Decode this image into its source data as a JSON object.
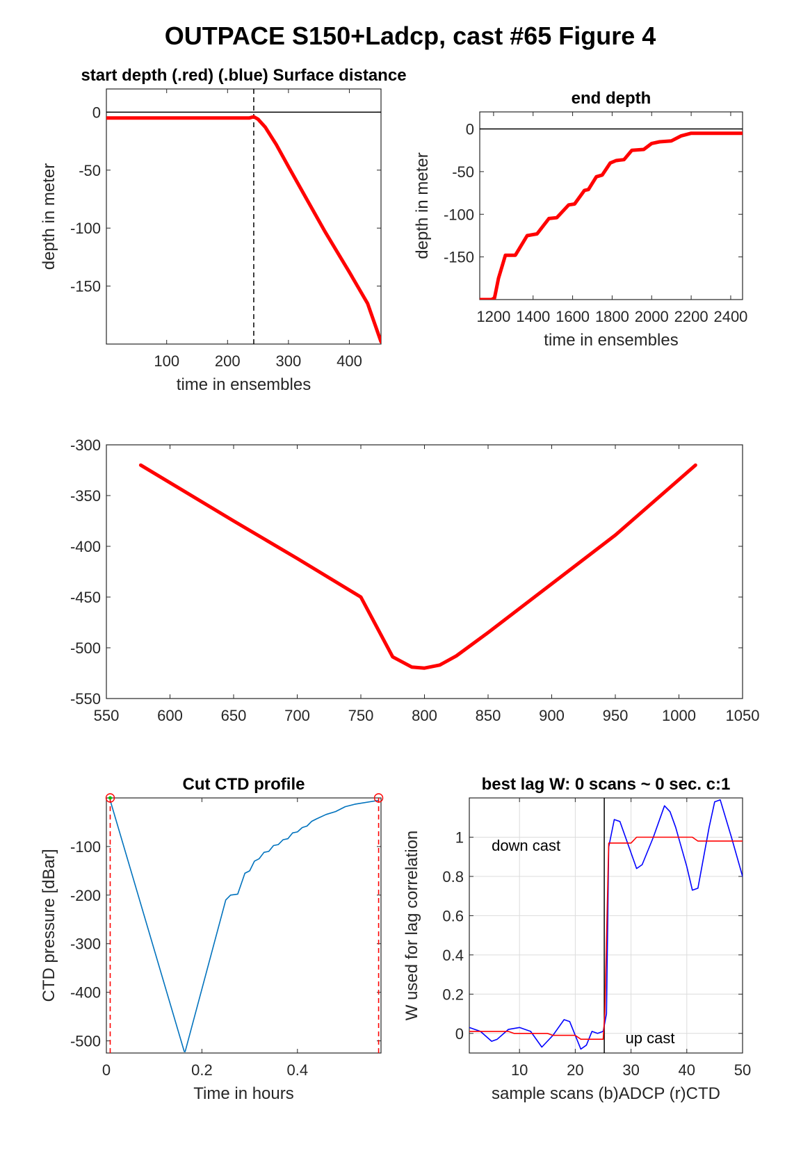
{
  "figure_title": "OUTPACE S150+Ladcp, cast #65   Figure 4",
  "chart_data": [
    {
      "id": "start_depth",
      "type": "line",
      "title": "start depth (.red) (.blue) Surface distance",
      "xlabel": "time in ensembles",
      "ylabel": "depth in meter",
      "xlim": [
        1,
        452
      ],
      "ylim": [
        -200,
        20
      ],
      "xticks": [
        100,
        200,
        300,
        400
      ],
      "yticks": [
        0,
        -50,
        -100,
        -150
      ],
      "zero_line": true,
      "vline": {
        "x": 243,
        "style": "dashed"
      },
      "series": [
        {
          "color": "#ff0000",
          "x": [
            1,
            100,
            200,
            236,
            243,
            250,
            262,
            280,
            300,
            330,
            360,
            400,
            430,
            452
          ],
          "y": [
            -5,
            -5,
            -5,
            -5,
            -4,
            -6,
            -13,
            -28,
            -47,
            -75,
            -103,
            -138,
            -165,
            -198
          ]
        }
      ]
    },
    {
      "id": "end_depth",
      "type": "line",
      "title": "end depth",
      "xlabel": "time in ensembles",
      "ylabel": "depth in meter",
      "xlim": [
        1130,
        2460
      ],
      "ylim": [
        -200,
        20
      ],
      "xticks": [
        1200,
        1400,
        1600,
        1800,
        2000,
        2200,
        2400
      ],
      "yticks": [
        0,
        -50,
        -100,
        -150
      ],
      "zero_line": true,
      "series": [
        {
          "color": "#ff0000",
          "x": [
            1130,
            1190,
            1205,
            1225,
            1260,
            1310,
            1370,
            1420,
            1480,
            1520,
            1580,
            1610,
            1660,
            1680,
            1720,
            1750,
            1790,
            1820,
            1860,
            1900,
            1960,
            2000,
            2040,
            2100,
            2150,
            2200,
            2460
          ],
          "y": [
            -200,
            -200,
            -198,
            -175,
            -148,
            -148,
            -125,
            -123,
            -105,
            -104,
            -89,
            -88,
            -72,
            -71,
            -56,
            -54,
            -40,
            -37,
            -36,
            -25,
            -24,
            -17,
            -15,
            -14,
            -8,
            -5,
            -5
          ]
        }
      ]
    },
    {
      "id": "depth_profile",
      "type": "line",
      "title": "",
      "xlabel": "",
      "ylabel": "",
      "xlim": [
        550,
        1050
      ],
      "ylim": [
        -550,
        -300
      ],
      "xticks": [
        550,
        600,
        650,
        700,
        750,
        800,
        850,
        900,
        950,
        1000,
        1050
      ],
      "yticks": [
        -300,
        -350,
        -400,
        -450,
        -500,
        -550
      ],
      "series": [
        {
          "color": "#ff0000",
          "x": [
            577,
            650,
            700,
            750,
            775,
            790,
            800,
            812,
            825,
            850,
            900,
            950,
            1013
          ],
          "y": [
            -320,
            -375,
            -412,
            -450,
            -509,
            -519,
            -520,
            -517,
            -508,
            -485,
            -437,
            -389,
            -320
          ]
        }
      ]
    },
    {
      "id": "cut_ctd",
      "type": "line",
      "title": "Cut CTD profile",
      "xlabel": "Time in hours",
      "ylabel": "CTD pressure [dBar]",
      "xlim": [
        0,
        0.575
      ],
      "ylim": [
        -525,
        0
      ],
      "xticks": [
        0,
        0.2,
        0.4
      ],
      "ytick_values": [
        -100,
        -200,
        -300,
        -400,
        -500
      ],
      "yticks": [
        "-100",
        "-200",
        "-300",
        "-400",
        "-500"
      ],
      "cut_lines_x": [
        0.008,
        0.57
      ],
      "series": [
        {
          "color": "#0072bd",
          "x": [
            0.008,
            0.163,
            0.165,
            0.25,
            0.26,
            0.275,
            0.29,
            0.3,
            0.31,
            0.32,
            0.33,
            0.34,
            0.35,
            0.36,
            0.37,
            0.38,
            0.39,
            0.4,
            0.41,
            0.42,
            0.43,
            0.44,
            0.46,
            0.48,
            0.5,
            0.52,
            0.57
          ],
          "y": [
            -5,
            -522,
            -522,
            -210,
            -200,
            -198,
            -155,
            -150,
            -130,
            -125,
            -112,
            -110,
            -98,
            -96,
            -86,
            -84,
            -72,
            -70,
            -61,
            -58,
            -48,
            -43,
            -34,
            -28,
            -18,
            -13,
            -5
          ]
        }
      ]
    },
    {
      "id": "best_lag",
      "type": "line",
      "title": "best lag W: 0 scans ~ 0 sec.  c:1",
      "xlabel": "sample scans (b)ADCP (r)CTD",
      "ylabel": "W used for lag correlation",
      "xlim": [
        1,
        50
      ],
      "ylim": [
        -0.1,
        1.2
      ],
      "xticks": [
        10,
        20,
        30,
        40,
        50
      ],
      "yticks": [
        1,
        0.8,
        0.6,
        0.4,
        0.2,
        0
      ],
      "grid": true,
      "vline": {
        "x": 25.2,
        "style": "solid"
      },
      "annotations": [
        "down cast",
        "up cast"
      ],
      "series": [
        {
          "color": "#0000ff",
          "x": [
            1,
            3,
            5,
            6,
            8,
            10,
            12,
            14,
            16,
            18,
            19,
            21,
            22,
            23,
            24,
            25,
            25.6,
            26,
            27,
            28,
            30,
            31,
            32,
            34,
            36,
            37,
            38,
            40,
            41,
            42,
            44,
            45,
            46,
            48,
            50
          ],
          "y": [
            0.03,
            0.01,
            -0.04,
            -0.03,
            0.02,
            0.03,
            0.01,
            -0.07,
            -0.01,
            0.07,
            0.06,
            -0.08,
            -0.06,
            0.01,
            0.0,
            0.01,
            0.1,
            0.95,
            1.09,
            1.08,
            0.92,
            0.84,
            0.86,
            1.0,
            1.16,
            1.13,
            1.05,
            0.85,
            0.73,
            0.74,
            1.05,
            1.18,
            1.19,
            1.0,
            0.8
          ]
        },
        {
          "color": "#ff0000",
          "x": [
            1,
            8,
            9,
            15,
            16,
            20,
            21,
            25,
            25.3,
            26,
            27,
            30,
            31,
            36,
            38,
            41,
            42,
            50
          ],
          "y": [
            0.01,
            0.01,
            0.0,
            0.0,
            -0.01,
            -0.01,
            -0.03,
            -0.03,
            0.1,
            0.97,
            0.97,
            0.97,
            1.0,
            1.0,
            1.0,
            1.0,
            0.98,
            0.98
          ]
        }
      ]
    }
  ]
}
